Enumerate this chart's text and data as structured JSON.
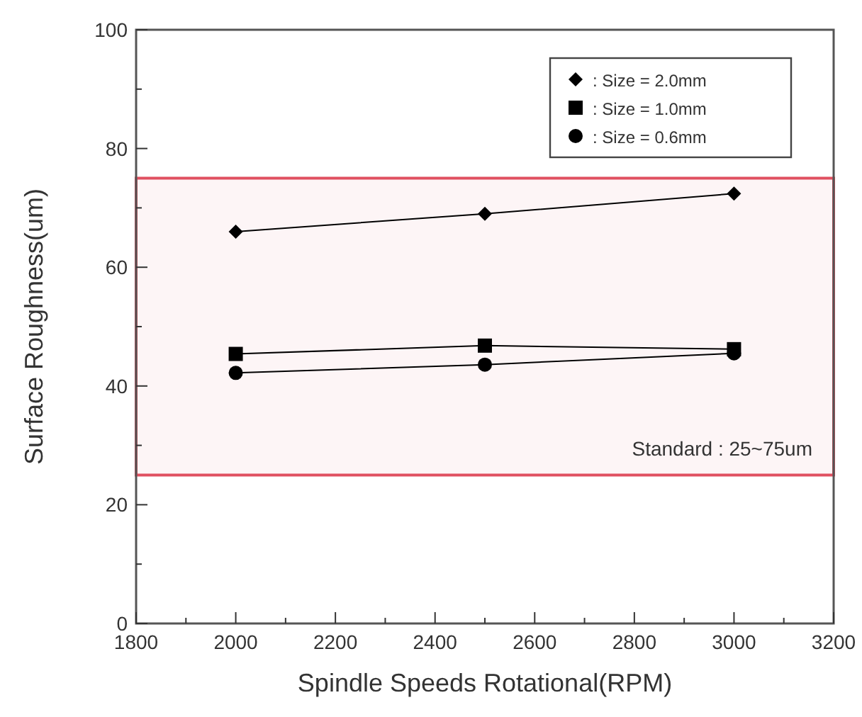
{
  "chart_data": {
    "type": "line",
    "xlabel": "Spindle Speeds Rotational(RPM)",
    "ylabel": "Surface Roughness(um)",
    "x": [
      2000,
      2500,
      3000
    ],
    "series": [
      {
        "name": ": Size = 2.0mm",
        "color": "#000000",
        "marker": "diamond",
        "values": [
          66,
          69,
          72.4
        ]
      },
      {
        "name": ": Size = 1.0mm",
        "color": "#000000",
        "marker": "square",
        "values": [
          45.4,
          46.8,
          46.2
        ]
      },
      {
        "name": ": Size = 0.6mm",
        "color": "#000000",
        "marker": "circle",
        "values": [
          42.2,
          43.6,
          45.5
        ]
      }
    ],
    "xlim": [
      1800,
      3200
    ],
    "xticks": [
      1800,
      {
        "value": 1900,
        "label": null
      },
      2000,
      {
        "value": 2100,
        "label": null
      },
      2200,
      {
        "value": 2300,
        "label": null
      },
      2400,
      {
        "value": 2500,
        "label": null
      },
      2600,
      {
        "value": 2700,
        "label": null
      },
      2800,
      {
        "value": 2900,
        "label": null
      },
      3000,
      {
        "value": 3100,
        "label": null
      },
      3200
    ],
    "ylim": [
      0,
      100
    ],
    "yticks": [
      0,
      {
        "value": 10,
        "label": null
      },
      20,
      {
        "value": 30,
        "label": null
      },
      40,
      {
        "value": 50,
        "label": null
      },
      60,
      {
        "value": 70,
        "label": null
      },
      80,
      {
        "value": 90,
        "label": null
      },
      100
    ],
    "bands": [
      {
        "axis": "y",
        "from": 25,
        "to": 75,
        "label": "Standard : 25~75um",
        "color": "#e05060"
      }
    ],
    "legend": "top right",
    "grid": false,
    "line_style": "solid"
  }
}
